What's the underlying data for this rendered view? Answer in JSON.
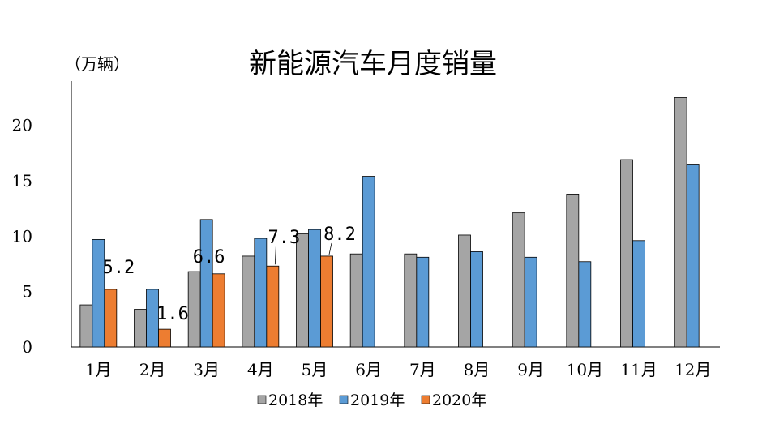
{
  "chart_data": {
    "type": "bar",
    "title": "新能源汽车月度销量",
    "ylabel": "（万辆）",
    "xlabel": "",
    "categories": [
      "1月",
      "2月",
      "3月",
      "4月",
      "5月",
      "6月",
      "7月",
      "8月",
      "9月",
      "10月",
      "11月",
      "12月"
    ],
    "ylim": [
      0,
      24
    ],
    "yticks": [
      0,
      5,
      10,
      15,
      20
    ],
    "series": [
      {
        "name": "2018年",
        "color": "#a5a5a5",
        "values": [
          3.8,
          3.4,
          6.8,
          8.2,
          10.2,
          8.4,
          8.4,
          10.1,
          12.1,
          13.8,
          16.9,
          22.5
        ]
      },
      {
        "name": "2019年",
        "color": "#5b9bd5",
        "values": [
          9.7,
          5.2,
          11.5,
          9.8,
          10.6,
          15.4,
          8.1,
          8.6,
          8.1,
          7.7,
          9.6,
          16.5
        ]
      },
      {
        "name": "2020年",
        "color": "#ed7d31",
        "values": [
          5.2,
          1.6,
          6.6,
          7.3,
          8.2,
          null,
          null,
          null,
          null,
          null,
          null,
          null
        ]
      }
    ],
    "data_labels": [
      {
        "series": "2020年",
        "category": "1月",
        "text": "5.2"
      },
      {
        "series": "2020年",
        "category": "2月",
        "text": "1.6"
      },
      {
        "series": "2020年",
        "category": "3月",
        "text": "6.6"
      },
      {
        "series": "2020年",
        "category": "4月",
        "text": "7.3"
      },
      {
        "series": "2020年",
        "category": "5月",
        "text": "8.2"
      }
    ],
    "legend_position": "bottom",
    "grid": false
  }
}
